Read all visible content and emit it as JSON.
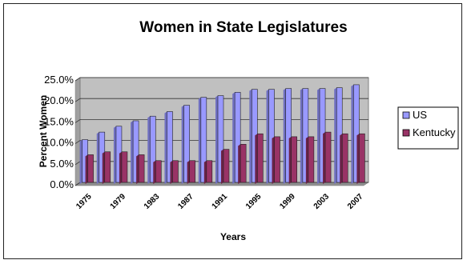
{
  "chart_data": {
    "type": "bar",
    "title": "Women in State Legislatures",
    "xlabel": "Years",
    "ylabel": "Percent Women",
    "ylim": [
      0,
      25
    ],
    "y_ticks": [
      "0.0%",
      "5.0%",
      "10.0%",
      "15.0%",
      "20.0%",
      "25.0%"
    ],
    "y_tick_values": [
      0,
      5,
      10,
      15,
      20,
      25
    ],
    "categories": [
      "1975",
      "1977",
      "1979",
      "1981",
      "1983",
      "1985",
      "1987",
      "1989",
      "1991",
      "1993",
      "1995",
      "1997",
      "1999",
      "2001",
      "2003",
      "2005",
      "2007"
    ],
    "x_tick_labels": [
      "1975",
      "1979",
      "1983",
      "1987",
      "1991",
      "1995",
      "1999",
      "2003",
      "2007"
    ],
    "grid": true,
    "legend_position": "right",
    "series": [
      {
        "name": "US",
        "color": "#9999ff",
        "values": [
          10.2,
          12.0,
          13.4,
          14.7,
          15.8,
          16.9,
          18.4,
          20.3,
          20.7,
          21.5,
          22.2,
          22.2,
          22.4,
          22.4,
          22.4,
          22.6,
          23.3
        ]
      },
      {
        "name": "Kentucky",
        "color": "#993366",
        "values": [
          6.6,
          7.3,
          7.3,
          6.6,
          5.2,
          5.2,
          5.2,
          5.2,
          7.9,
          9.1,
          11.6,
          10.9,
          10.9,
          10.9,
          12.0,
          11.6,
          11.6
        ]
      }
    ]
  }
}
